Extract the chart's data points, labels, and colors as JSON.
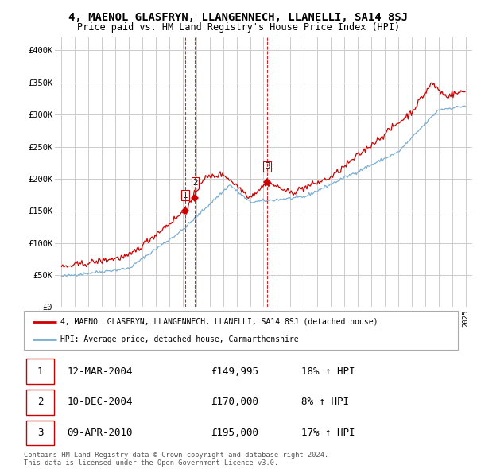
{
  "title": "4, MAENOL GLASFRYN, LLANGENNECH, LLANELLI, SA14 8SJ",
  "subtitle": "Price paid vs. HM Land Registry's House Price Index (HPI)",
  "title_fontsize": 10,
  "subtitle_fontsize": 8.5,
  "ylim": [
    0,
    420000
  ],
  "yticks": [
    0,
    50000,
    100000,
    150000,
    200000,
    250000,
    300000,
    350000,
    400000
  ],
  "ytick_labels": [
    "£0",
    "£50K",
    "£100K",
    "£150K",
    "£200K",
    "£250K",
    "£300K",
    "£350K",
    "£400K"
  ],
  "xlim_start": 1994.5,
  "xlim_end": 2025.5,
  "bg_color": "#ffffff",
  "grid_color": "#cccccc",
  "red_line_color": "#cc0000",
  "blue_line_color": "#7bafd4",
  "sale_marker_color": "#cc0000",
  "dashed_line_color": "#cc0000",
  "sales": [
    {
      "date": "12-MAR-2004",
      "x": 2004.2,
      "price": 149995,
      "label": "1",
      "hpi_pct": "18%"
    },
    {
      "date": "10-DEC-2004",
      "x": 2004.92,
      "price": 170000,
      "label": "2",
      "hpi_pct": "8%"
    },
    {
      "date": "09-APR-2010",
      "x": 2010.27,
      "price": 195000,
      "label": "3",
      "hpi_pct": "17%"
    }
  ],
  "legend_line1": "4, MAENOL GLASFRYN, LLANGENNECH, LLANELLI, SA14 8SJ (detached house)",
  "legend_line2": "HPI: Average price, detached house, Carmarthenshire",
  "footer1": "Contains HM Land Registry data © Crown copyright and database right 2024.",
  "footer2": "This data is licensed under the Open Government Licence v3.0."
}
